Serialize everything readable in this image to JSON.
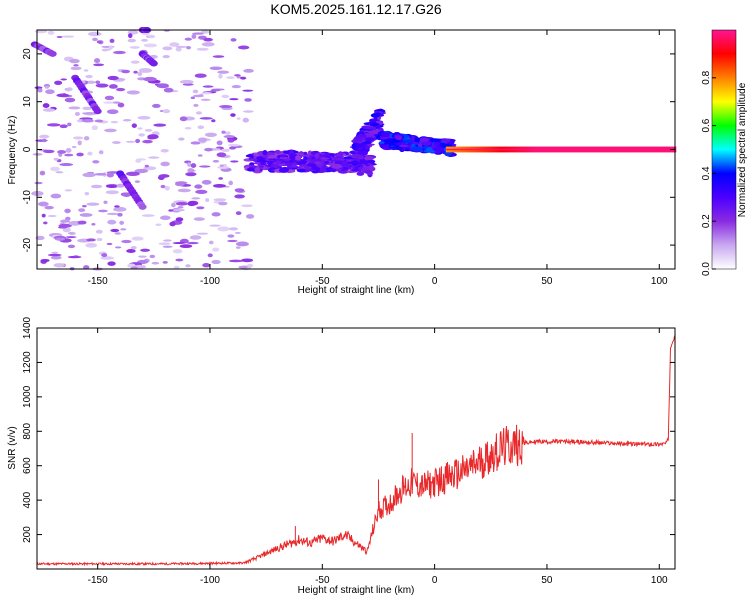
{
  "title": "KOM5.2025.161.12.17.G26",
  "chart_data": [
    {
      "type": "heatmap",
      "xlabel": "Height of straight line (km)",
      "ylabel": "Frequency (Hz)",
      "xlim": [
        -177,
        107
      ],
      "ylim": [
        -25,
        25
      ],
      "xticks": [
        "-150",
        "-100",
        "-50",
        "0",
        "50",
        "100"
      ],
      "yticks": [
        "-20",
        "-10",
        "0",
        "10",
        "20"
      ],
      "colorbar": {
        "label": "Normalized spectral amplitude",
        "range": [
          0,
          1
        ],
        "ticks": [
          "0.0",
          "0.2",
          "0.4",
          "0.6",
          "0.8"
        ],
        "colors": [
          "#ffffff",
          "#c8a8f0",
          "#8a2be2",
          "#4b00ff",
          "#0000ff",
          "#00ffff",
          "#00ff00",
          "#ffff00",
          "#ff8000",
          "#ff0000",
          "#ff1493"
        ]
      },
      "features": [
        {
          "x": [
            -82,
            -28
          ],
          "y": [
            -5,
            0
          ],
          "amplitude": 0.3,
          "desc": "scattered"
        },
        {
          "x": [
            -35,
            5
          ],
          "y": [
            -3,
            4
          ],
          "amplitude": 0.4
        },
        {
          "x": [
            5,
            107
          ],
          "y": [
            -0.6,
            0.6
          ],
          "amplitude": 0.9
        }
      ]
    },
    {
      "type": "line",
      "xlabel": "Height of straight line (km)",
      "ylabel": "SNR (v/v)",
      "xlim": [
        -177,
        107
      ],
      "ylim": [
        0,
        1400
      ],
      "xticks": [
        "-150",
        "-100",
        "-50",
        "0",
        "50",
        "100"
      ],
      "yticks": [
        "200",
        "400",
        "600",
        "800",
        "1000",
        "1200",
        "1400"
      ],
      "color": "#e8282a",
      "x": [
        -177,
        -120,
        -85,
        -80,
        -70,
        -60,
        -55,
        -50,
        -45,
        -40,
        -35,
        -30,
        -28,
        -25,
        -20,
        -15,
        -10,
        -5,
        0,
        5,
        10,
        15,
        20,
        25,
        30,
        35,
        40,
        45,
        50,
        60,
        70,
        80,
        90,
        100,
        103,
        104,
        105,
        106,
        107
      ],
      "y": [
        30,
        30,
        35,
        60,
        120,
        170,
        150,
        180,
        160,
        200,
        150,
        100,
        200,
        340,
        380,
        460,
        500,
        480,
        500,
        530,
        550,
        580,
        620,
        660,
        700,
        720,
        730,
        740,
        740,
        740,
        735,
        730,
        725,
        725,
        730,
        750,
        1300,
        1350,
        1360
      ],
      "spikes": [
        {
          "x": -10,
          "y": 790
        },
        {
          "x": -25,
          "y": 520
        },
        {
          "x": -62,
          "y": 250
        }
      ]
    }
  ]
}
